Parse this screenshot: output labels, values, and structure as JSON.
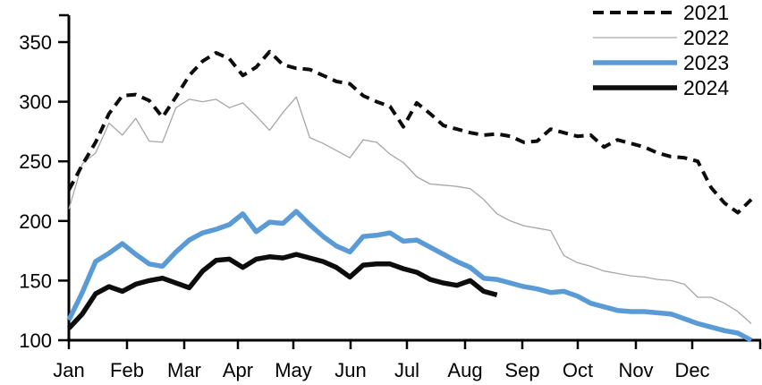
{
  "chart_data": {
    "type": "line",
    "title": "",
    "x_unit": "weekly points spanning Jan-Dec (52 per full year)",
    "x_tick_labels": [
      "Jan",
      "Feb",
      "Mar",
      "Apr",
      "May",
      "Jun",
      "Jul",
      "Aug",
      "Sep",
      "Oct",
      "Nov",
      "Dec"
    ],
    "y_ticks": [
      100,
      150,
      200,
      250,
      300,
      350
    ],
    "y_tick_labels": [
      "100",
      "150",
      "200",
      "250",
      "300",
      "350"
    ],
    "y_range": [
      100,
      375
    ],
    "grid": "off",
    "legend_position": "top-right",
    "background_color": "#ffffff",
    "axis_color": "#000000",
    "series": [
      {
        "name": "2021",
        "style": "dashed",
        "color": "#0d0d0d",
        "stroke_width": 4,
        "values": [
          226,
          247,
          266,
          290,
          305,
          306,
          301,
          287,
          304,
          322,
          334,
          341,
          336,
          322,
          329,
          342,
          331,
          328,
          327,
          322,
          317,
          315,
          305,
          300,
          296,
          279,
          299,
          290,
          280,
          277,
          274,
          272,
          273,
          271,
          266,
          267,
          277,
          274,
          271,
          272,
          262,
          268,
          265,
          262,
          257,
          254,
          253,
          250,
          228,
          215,
          207,
          218
        ]
      },
      {
        "name": "2022",
        "style": "solid",
        "color": "#a6a6a6",
        "stroke_width": 1.3,
        "values": [
          210,
          248,
          257,
          282,
          272,
          286,
          267,
          266,
          295,
          302,
          300,
          302,
          295,
          299,
          288,
          276,
          291,
          304,
          270,
          265,
          259,
          253,
          268,
          266,
          256,
          249,
          237,
          231,
          230,
          229,
          227,
          218,
          206,
          200,
          196,
          194,
          192,
          171,
          165,
          162,
          158,
          156,
          154,
          153,
          151,
          150,
          147,
          136,
          136,
          131,
          124,
          114
        ]
      },
      {
        "name": "2023",
        "style": "solid",
        "color": "#5b9bd5",
        "stroke_width": 5.5,
        "values": [
          117,
          140,
          166,
          173,
          181,
          172,
          164,
          162,
          174,
          184,
          190,
          193,
          197,
          206,
          191,
          199,
          198,
          208,
          197,
          187,
          179,
          174,
          187,
          188,
          190,
          183,
          184,
          178,
          172,
          166,
          161,
          152,
          151,
          148,
          145,
          143,
          140,
          141,
          137,
          131,
          128,
          125,
          124,
          124,
          123,
          122,
          118,
          114,
          111,
          108,
          106,
          100
        ]
      },
      {
        "name": "2024",
        "style": "solid",
        "color": "#0d0d0d",
        "stroke_width": 5.5,
        "values": [
          110,
          122,
          139,
          145,
          141,
          147,
          150,
          152,
          148,
          144,
          158,
          167,
          168,
          161,
          168,
          170,
          169,
          172,
          169,
          166,
          161,
          153,
          163,
          164,
          164,
          160,
          157,
          151,
          148,
          146,
          150,
          141,
          138
        ]
      }
    ]
  }
}
